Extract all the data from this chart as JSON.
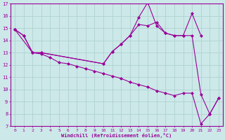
{
  "line_lower": {
    "x": [
      0,
      1,
      2,
      3,
      4,
      5,
      6,
      7,
      8,
      9,
      10,
      11,
      12,
      13,
      14,
      15,
      16,
      17,
      18,
      19,
      20,
      21,
      22,
      23
    ],
    "y": [
      14.9,
      14.4,
      13.0,
      12.9,
      12.6,
      12.2,
      12.1,
      11.9,
      11.7,
      11.5,
      11.3,
      11.1,
      10.9,
      10.6,
      10.4,
      10.2,
      9.9,
      9.7,
      9.5,
      9.7,
      9.7,
      7.2,
      8.0,
      9.3
    ]
  },
  "line_mid": {
    "x": [
      0,
      1,
      2,
      3,
      10,
      11,
      12,
      13,
      14,
      15,
      16,
      17,
      18,
      19,
      20,
      21,
      22,
      23
    ],
    "y": [
      14.9,
      14.4,
      13.0,
      13.0,
      12.1,
      13.1,
      13.7,
      14.4,
      15.3,
      15.2,
      15.5,
      14.6,
      14.4,
      14.4,
      14.4,
      9.6,
      8.0,
      9.3
    ]
  },
  "line_upper": {
    "x": [
      0,
      2,
      3,
      10,
      11,
      12,
      13,
      14,
      15,
      16,
      17,
      18,
      19,
      20,
      21
    ],
    "y": [
      14.9,
      13.0,
      13.0,
      12.1,
      13.1,
      13.7,
      14.4,
      15.9,
      17.1,
      15.2,
      14.6,
      14.4,
      14.4,
      16.2,
      14.4
    ]
  },
  "color": "#990099",
  "bg_color": "#cce8e8",
  "grid_color": "#aacece",
  "xlim": [
    -0.5,
    23.5
  ],
  "ylim": [
    7,
    17
  ],
  "yticks": [
    7,
    8,
    9,
    10,
    11,
    12,
    13,
    14,
    15,
    16,
    17
  ],
  "xticks": [
    0,
    1,
    2,
    3,
    4,
    5,
    6,
    7,
    8,
    9,
    10,
    11,
    12,
    13,
    14,
    15,
    16,
    17,
    18,
    19,
    20,
    21,
    22,
    23
  ],
  "xlabel": "Windchill (Refroidissement éolien,°C)",
  "marker": "D",
  "markersize": 2.0,
  "linewidth": 0.8,
  "tick_fontsize": 4.5,
  "xlabel_fontsize": 5.0
}
